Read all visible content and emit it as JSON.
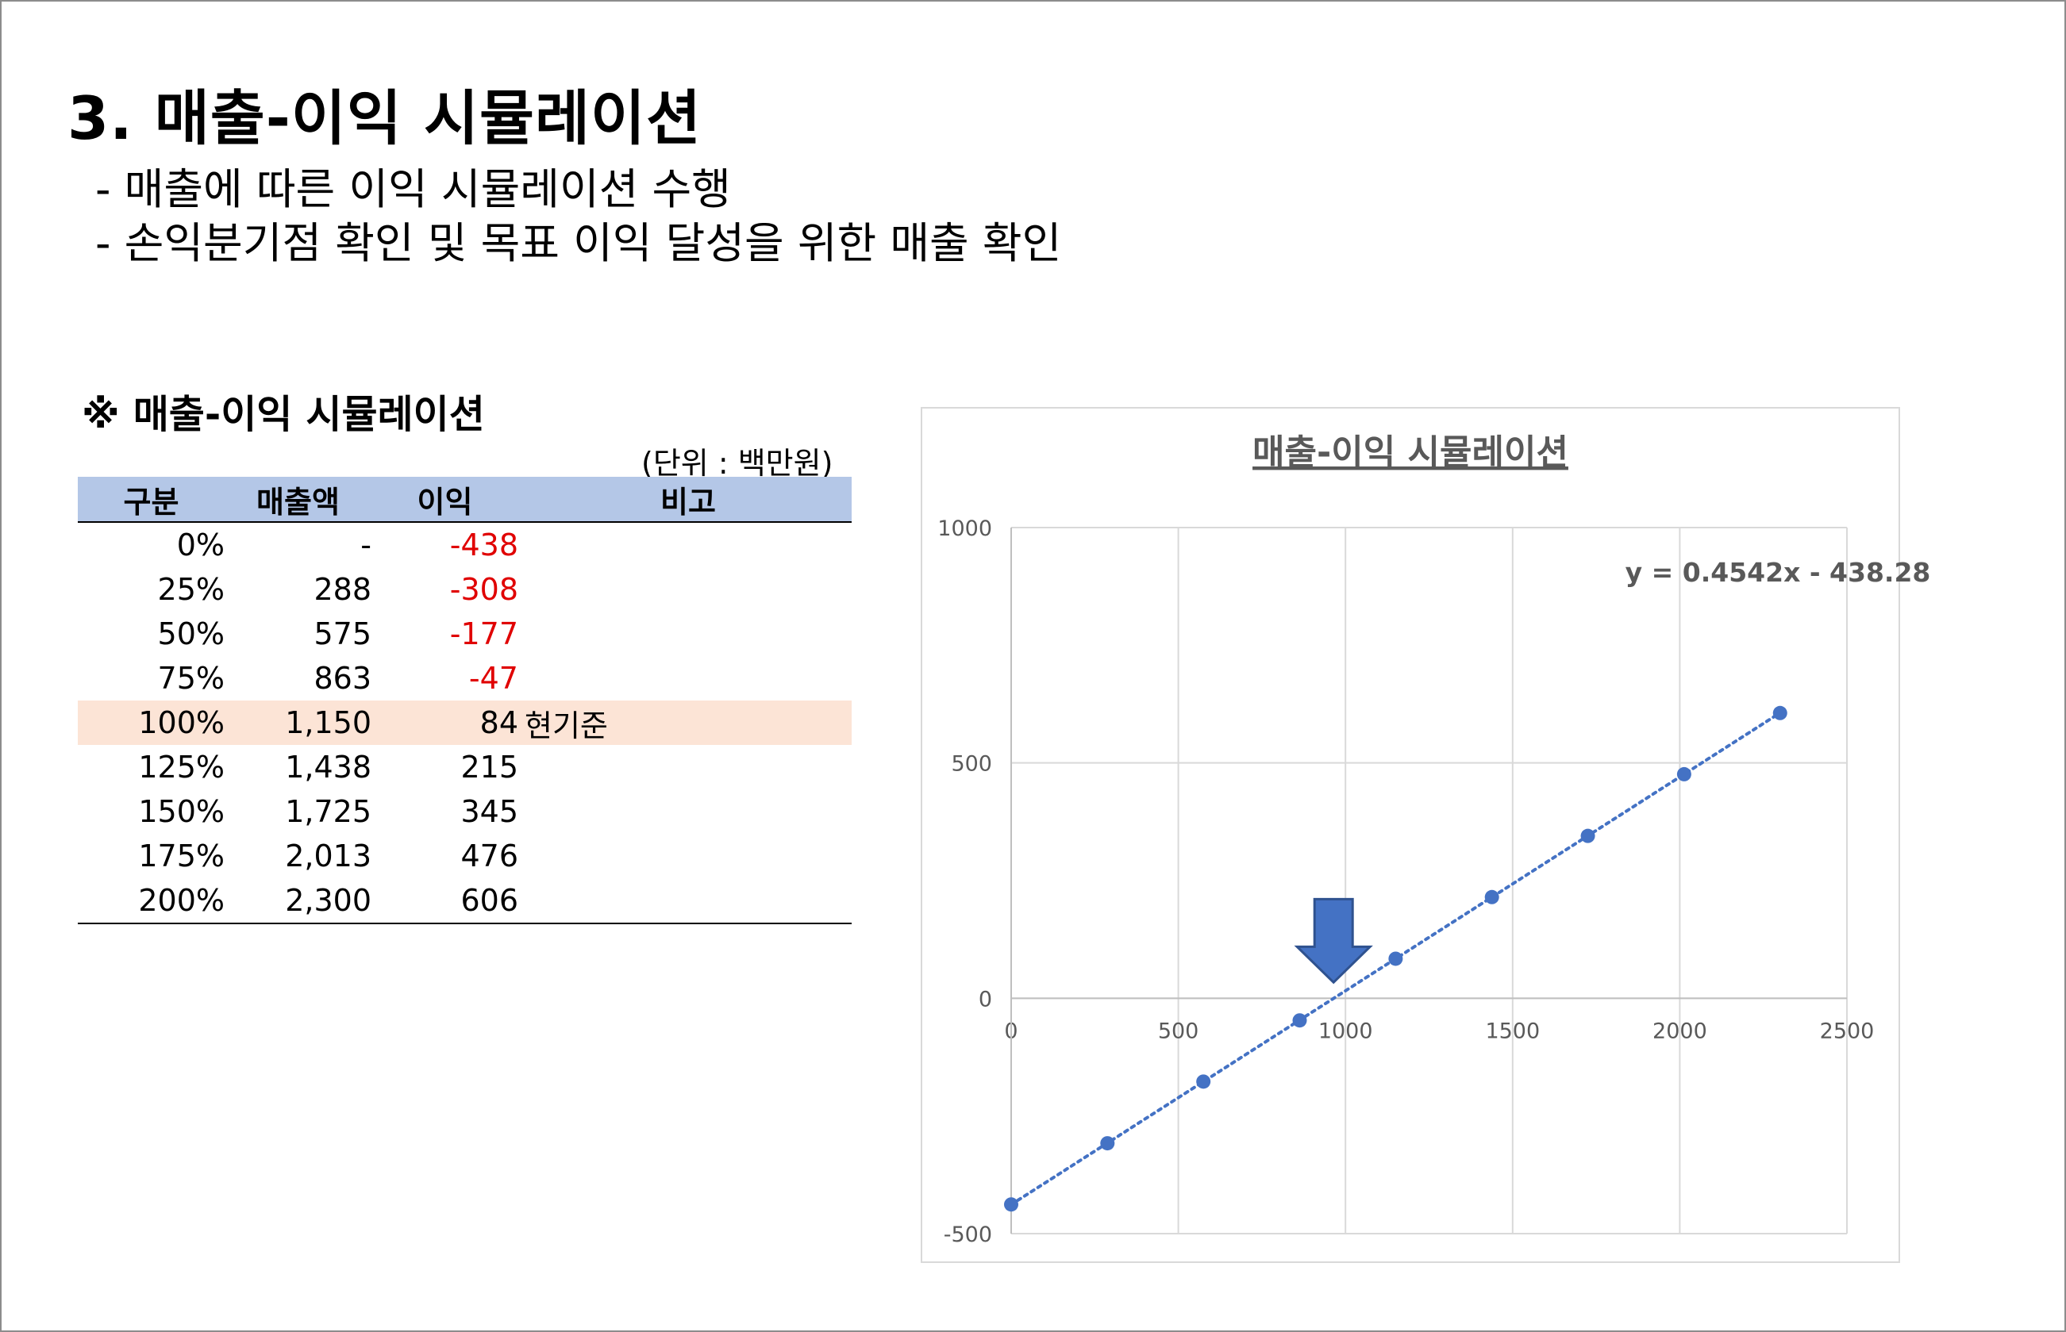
{
  "page": {
    "title": "3. 매출-이익 시뮬레이션",
    "bullets": [
      "- 매출에 따른 이익 시뮬레이션 수행",
      "- 손익분기점 확인 및 목표 이익 달성을 위한 매출 확인"
    ]
  },
  "table": {
    "title": "※ 매출-이익 시뮬레이션",
    "unit": "(단위 : 백만원)",
    "headers": [
      "구분",
      "매출액",
      "이익",
      "비고"
    ],
    "rows": [
      {
        "pct": "0%",
        "sales": "-",
        "profit": "-438",
        "note": ""
      },
      {
        "pct": "25%",
        "sales": "288",
        "profit": "-308",
        "note": ""
      },
      {
        "pct": "50%",
        "sales": "575",
        "profit": "-177",
        "note": ""
      },
      {
        "pct": "75%",
        "sales": "863",
        "profit": "-47",
        "note": ""
      },
      {
        "pct": "100%",
        "sales": "1,150",
        "profit": "84",
        "note": "현기준"
      },
      {
        "pct": "125%",
        "sales": "1,438",
        "profit": "215",
        "note": ""
      },
      {
        "pct": "150%",
        "sales": "1,725",
        "profit": "345",
        "note": ""
      },
      {
        "pct": "175%",
        "sales": "2,013",
        "profit": "476",
        "note": ""
      },
      {
        "pct": "200%",
        "sales": "2,300",
        "profit": "606",
        "note": ""
      }
    ],
    "highlight_color": "#fce4d6",
    "header_color": "#b4c7e7",
    "negative_color": "#e00000"
  },
  "chart_data": {
    "type": "scatter",
    "title": "매출-이익 시뮬레이션",
    "trendline_label": "y = 0.4542x - 438.28",
    "trendline": {
      "slope": 0.4542,
      "intercept": -438.28,
      "style": "dotted"
    },
    "x": [
      0,
      288,
      575,
      863,
      1150,
      1438,
      1725,
      2013,
      2300
    ],
    "y": [
      -438,
      -308,
      -177,
      -47,
      84,
      215,
      345,
      476,
      606
    ],
    "xlim": [
      0,
      2500
    ],
    "ylim": [
      -500,
      1000
    ],
    "xticks": [
      "0",
      "500",
      "1000",
      "1500",
      "2000",
      "2500"
    ],
    "yticks": [
      "-500",
      "0",
      "500",
      "1000"
    ],
    "grid": true,
    "point_color": "#4472c4",
    "arrow_color": "#4472c4",
    "arrow_at_x": 1000
  }
}
